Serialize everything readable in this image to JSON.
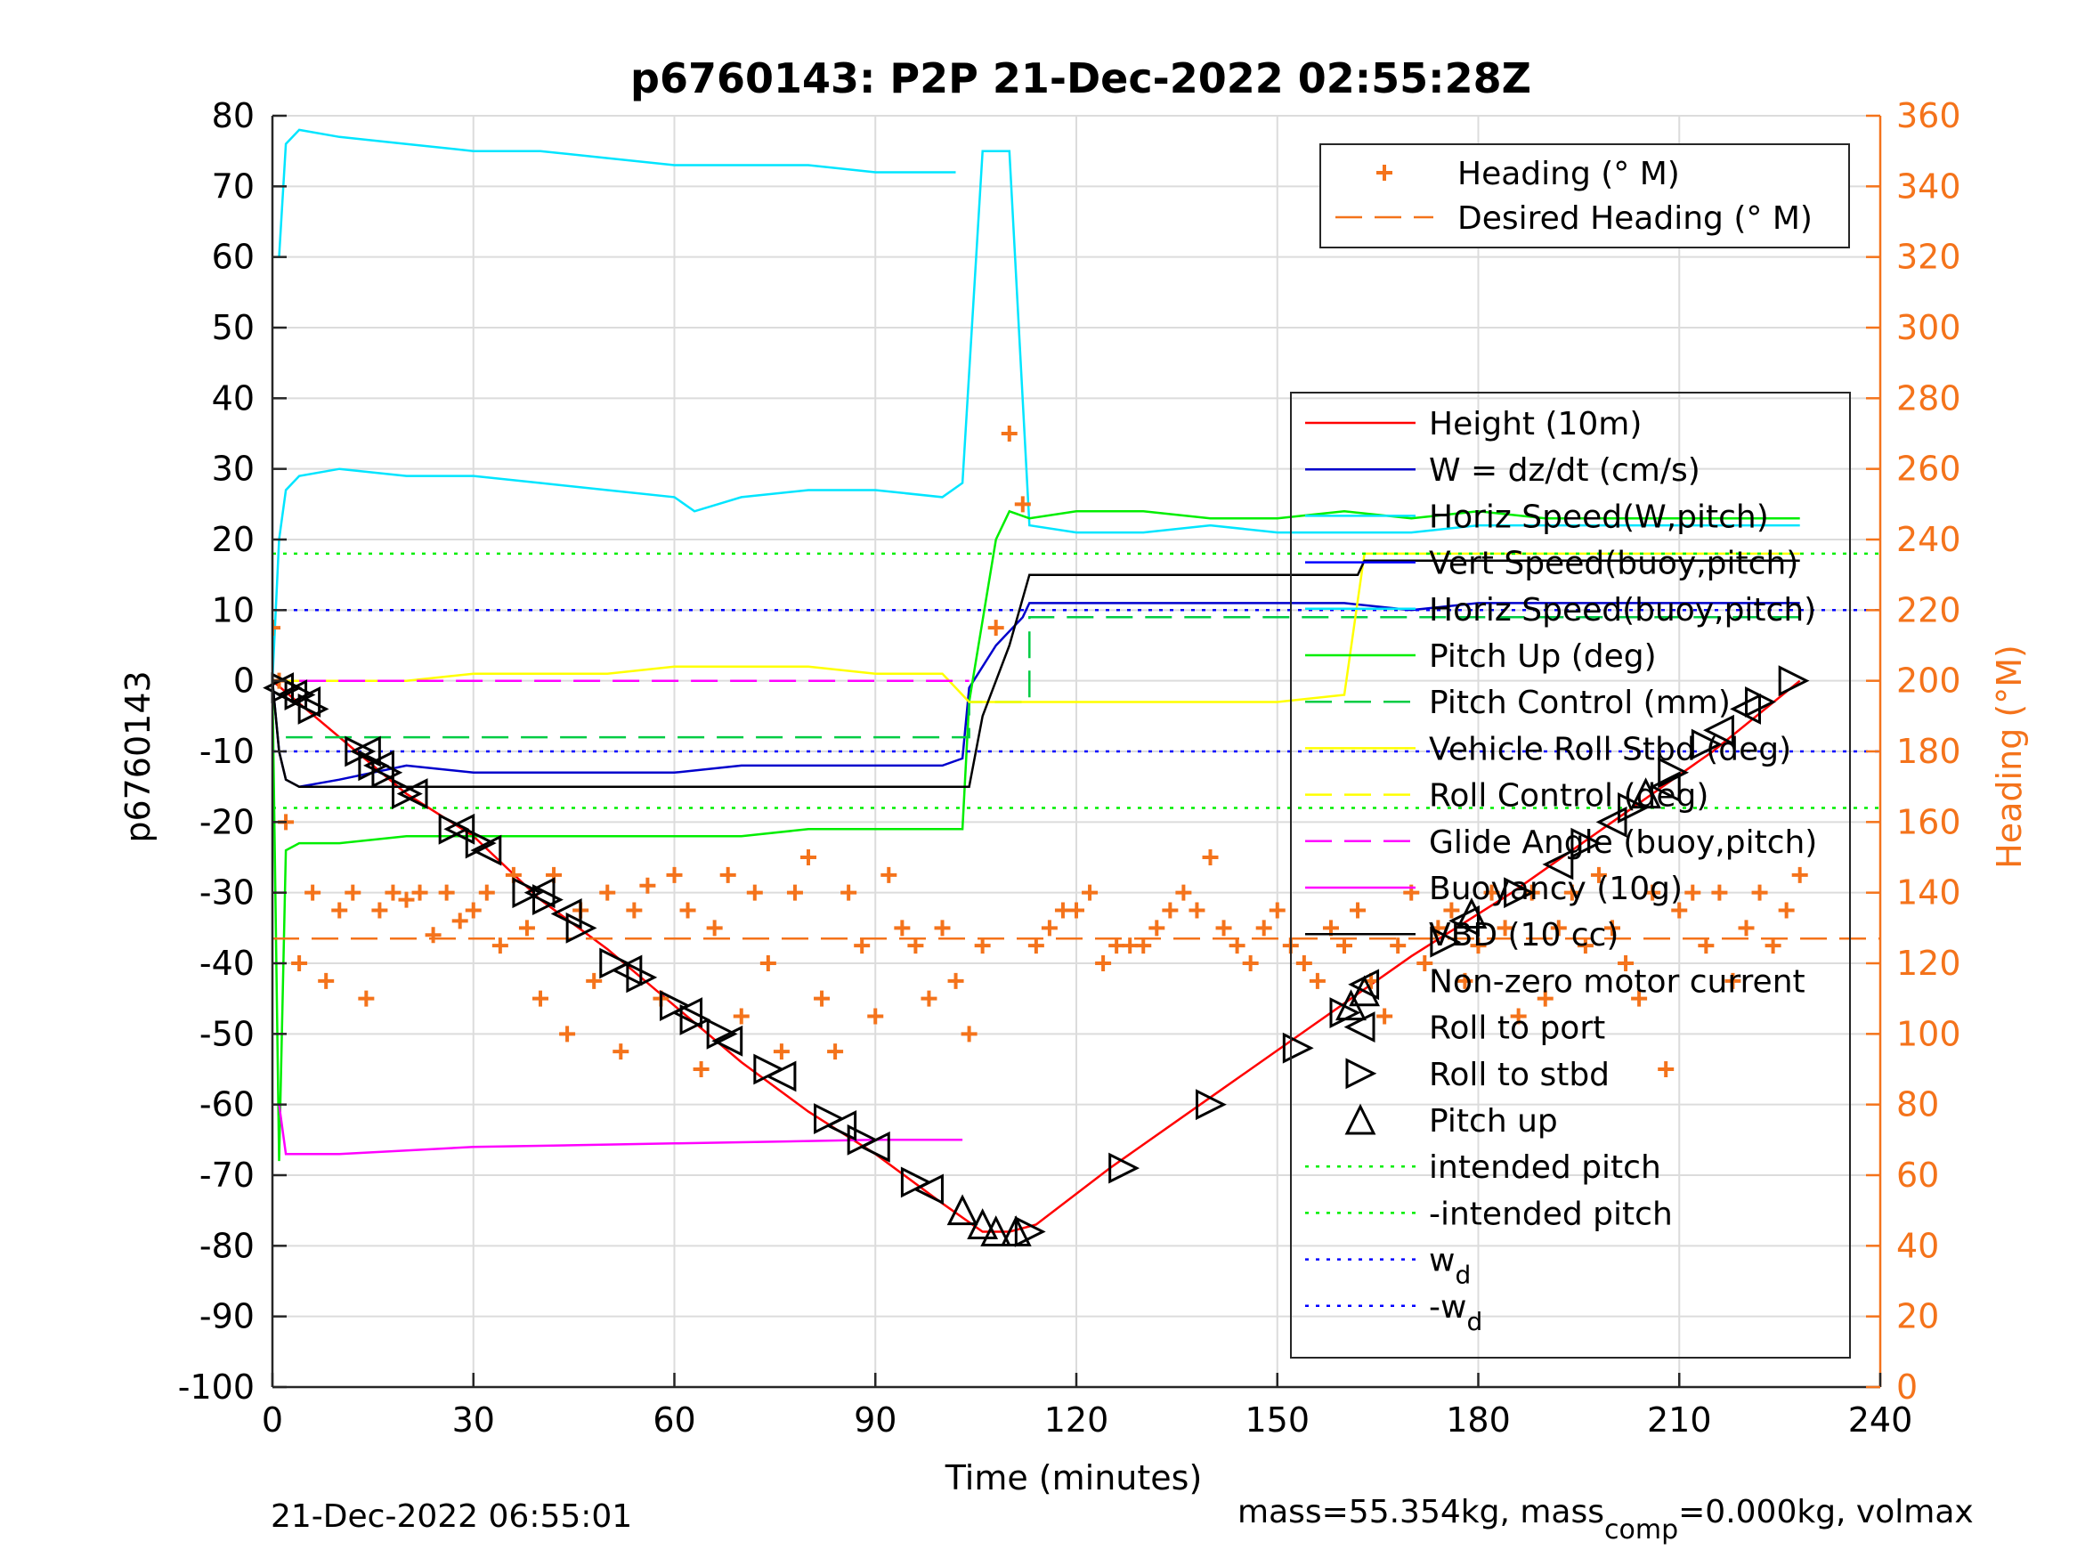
{
  "chart_data": {
    "type": "line",
    "title": "p6760143: P2P 21-Dec-2022 02:55:28Z",
    "xlabel": "Time (minutes)",
    "ylabel_left": "p6760143",
    "ylabel_right": "Heading (°M)",
    "xlim": [
      0,
      240
    ],
    "ylim_left": [
      -100,
      80
    ],
    "ylim_right": [
      0,
      360
    ],
    "x_ticks": [
      "0",
      "30",
      "60",
      "90",
      "120",
      "150",
      "180",
      "210",
      "240"
    ],
    "y_ticks_left": [
      "80",
      "70",
      "60",
      "50",
      "40",
      "30",
      "20",
      "10",
      "0",
      "-10",
      "-20",
      "-30",
      "-40",
      "-50",
      "-60",
      "-70",
      "-80",
      "-90",
      "-100"
    ],
    "y_ticks_right": [
      "360",
      "340",
      "320",
      "300",
      "280",
      "260",
      "240",
      "220",
      "200",
      "180",
      "160",
      "140",
      "120",
      "100",
      "80",
      "60",
      "40",
      "20",
      "0"
    ],
    "grid": true,
    "footer_left": "21-Dec-2022 06:55:01",
    "footer_right": "mass=55.354kg, mass",
    "footer_right_sub": "comp",
    "footer_right_tail": "=0.000kg, volmax",
    "heading_legend": [
      {
        "label": "Heading (° M)",
        "color": "#f4731b",
        "style": "plus"
      },
      {
        "label": "Desired Heading (° M)",
        "color": "#f4731b",
        "style": "dashed"
      }
    ],
    "legend": [
      {
        "label": "Height (10m)",
        "color": "#ff0000",
        "style": "solid"
      },
      {
        "label": "W = dz/dt (cm/s)",
        "color": "#0000cc",
        "style": "solid"
      },
      {
        "label": "Horiz Speed(W,pitch)",
        "color": "#00e5ff",
        "style": "solid"
      },
      {
        "label": "Vert Speed(buoy,pitch)",
        "color": "#0000ff",
        "style": "solid"
      },
      {
        "label": "Horiz Speed(buoy,pitch)",
        "color": "#00e5ff",
        "style": "solid"
      },
      {
        "label": "Pitch Up (deg)",
        "color": "#00ee00",
        "style": "solid"
      },
      {
        "label": "Pitch Control (mm)",
        "color": "#00cc44",
        "style": "dashed"
      },
      {
        "label": "Vehicle Roll Stbd (deg)",
        "color": "#ffff00",
        "style": "solid"
      },
      {
        "label": "Roll Control (deg)",
        "color": "#ffff00",
        "style": "dashed"
      },
      {
        "label": "Glide Angle (buoy,pitch)",
        "color": "#ff00ff",
        "style": "dashed"
      },
      {
        "label": "Buoyancy (10g)",
        "color": "#ff00ff",
        "style": "solid"
      },
      {
        "label": "VBD (10 cc)",
        "color": "#000000",
        "style": "solid"
      },
      {
        "label": "Non-zero motor current",
        "color": "#000000",
        "style": "none"
      },
      {
        "label": "Roll to port",
        "color": "#000000",
        "style": "tri-left"
      },
      {
        "label": "Roll to stbd",
        "color": "#000000",
        "style": "tri-right"
      },
      {
        "label": "Pitch up",
        "color": "#000000",
        "style": "tri-up"
      },
      {
        "label": "intended pitch",
        "color": "#00ee00",
        "style": "dotted"
      },
      {
        "label": "-intended pitch",
        "color": "#00ee00",
        "style": "dotted"
      },
      {
        "label": "w",
        "sub": "d",
        "color": "#0000ff",
        "style": "dotted"
      },
      {
        "label": "-w",
        "sub": "d",
        "color": "#0000ff",
        "style": "dotted"
      }
    ],
    "series": [
      {
        "name": "Height (10m)",
        "color": "#ff0000",
        "x": [
          0,
          10,
          20,
          30,
          40,
          50,
          60,
          70,
          80,
          90,
          100,
          106,
          110,
          114,
          125,
          140,
          155,
          170,
          185,
          200,
          215,
          228
        ],
        "y": [
          0,
          -8,
          -16,
          -22,
          -31,
          -38,
          -46,
          -54,
          -61,
          -67,
          -74,
          -78,
          -78,
          -77,
          -69,
          -59,
          -49,
          -39,
          -30,
          -20,
          -10,
          0
        ]
      },
      {
        "name": "W = dz/dt (cm/s)",
        "color": "#0000cc",
        "x": [
          0,
          1,
          2,
          4,
          10,
          20,
          30,
          40,
          50,
          60,
          70,
          80,
          90,
          100,
          103,
          104,
          108,
          112,
          113,
          120,
          130,
          140,
          150,
          160,
          170,
          180,
          190,
          200,
          210,
          220,
          228
        ],
        "y": [
          0,
          -10,
          -14,
          -15,
          -14,
          -12,
          -13,
          -13,
          -13,
          -13,
          -12,
          -12,
          -12,
          -12,
          -11,
          -1,
          5,
          9,
          11,
          11,
          11,
          11,
          11,
          11,
          10,
          11,
          11,
          11,
          11,
          11,
          11
        ]
      },
      {
        "name": "Horiz Speed(W,pitch)",
        "color": "#00e5ff",
        "x": [
          0,
          1,
          2,
          4,
          10,
          20,
          30,
          40,
          50,
          60,
          63,
          70,
          80,
          90,
          100,
          103,
          106,
          110,
          113,
          120,
          130,
          140,
          150,
          160,
          170,
          180,
          190,
          200,
          210,
          220,
          228
        ],
        "y": [
          0,
          20,
          27,
          29,
          30,
          29,
          29,
          28,
          27,
          26,
          24,
          26,
          27,
          27,
          26,
          28,
          75,
          75,
          22,
          21,
          21,
          22,
          21,
          21,
          21,
          22,
          22,
          22,
          22,
          22,
          22
        ]
      },
      {
        "name": "Horiz Speed(buoy,pitch)",
        "color": "#00e5ff",
        "x": [
          1,
          2,
          4,
          10,
          20,
          30,
          40,
          50,
          60,
          70,
          80,
          90,
          100,
          102
        ],
        "y": [
          60,
          76,
          78,
          77,
          76,
          75,
          75,
          74,
          73,
          73,
          73,
          72,
          72,
          72
        ]
      },
      {
        "name": "Pitch Up (deg)",
        "color": "#00ee00",
        "x": [
          0,
          1,
          2,
          4,
          10,
          20,
          30,
          40,
          50,
          60,
          70,
          80,
          90,
          100,
          103,
          104,
          108,
          110,
          113,
          120,
          130,
          140,
          150,
          160,
          170,
          180,
          190,
          200,
          210,
          220,
          228
        ],
        "y": [
          0,
          -68,
          -24,
          -23,
          -23,
          -22,
          -22,
          -22,
          -22,
          -22,
          -22,
          -21,
          -21,
          -21,
          -21,
          -3,
          20,
          24,
          23,
          24,
          24,
          23,
          23,
          24,
          23,
          24,
          23,
          23,
          23,
          23,
          23
        ]
      },
      {
        "name": "Pitch Control (mm)",
        "color": "#00cc44",
        "dashed": true,
        "x": [
          2,
          104,
          104,
          113,
          113,
          228
        ],
        "y": [
          -8,
          -8,
          -3,
          -3,
          9,
          9
        ]
      },
      {
        "name": "Vehicle Roll Stbd (deg)",
        "color": "#ffff00",
        "x": [
          0,
          10,
          20,
          30,
          40,
          50,
          60,
          70,
          80,
          90,
          100,
          104,
          110,
          113,
          120,
          130,
          140,
          150,
          160,
          163,
          170,
          180,
          190,
          200,
          210,
          220,
          228
        ],
        "y": [
          0,
          0,
          0,
          1,
          1,
          1,
          2,
          2,
          2,
          1,
          1,
          -3,
          -3,
          -3,
          -3,
          -3,
          -3,
          -3,
          -2,
          18,
          18,
          18,
          18,
          18,
          18,
          18,
          18
        ]
      },
      {
        "name": "Glide Angle (buoy,pitch)",
        "color": "#ff00ff",
        "dashed": true,
        "x": [
          4,
          104
        ],
        "y": [
          0,
          0
        ]
      },
      {
        "name": "Buoyancy (10g)",
        "color": "#ff00ff",
        "x": [
          1,
          2,
          10,
          30,
          60,
          90,
          103
        ],
        "y": [
          -60,
          -67,
          -67,
          -66,
          -65.5,
          -65,
          -65
        ]
      },
      {
        "name": "VBD (10 cc)",
        "color": "#000000",
        "x": [
          0,
          1,
          2,
          4,
          104,
          106,
          110,
          113,
          114,
          162,
          163,
          228
        ],
        "y": [
          0,
          -10,
          -14,
          -15,
          -15,
          -5,
          5,
          15,
          15,
          15,
          17,
          17
        ]
      },
      {
        "name": "intended pitch",
        "color": "#00ee00",
        "dotted": true,
        "x": [
          0,
          240
        ],
        "y": [
          18,
          18
        ]
      },
      {
        "name": "-intended pitch",
        "color": "#00ee00",
        "dotted": true,
        "x": [
          0,
          240
        ],
        "y": [
          -18,
          -18
        ]
      },
      {
        "name": "w_d",
        "color": "#0000ff",
        "dotted": true,
        "x": [
          0,
          240
        ],
        "y": [
          10,
          10
        ]
      },
      {
        "name": "-w_d",
        "color": "#0000ff",
        "dotted": true,
        "x": [
          0,
          240
        ],
        "y": [
          -10,
          -10
        ]
      },
      {
        "name": "Desired Heading (° M)",
        "color": "#f4731b",
        "dashed": true,
        "axis": "right",
        "x": [
          0,
          240
        ],
        "y": [
          127,
          127
        ]
      },
      {
        "name": "Heading (° M)",
        "color": "#f4731b",
        "marker": "plus",
        "axis": "right",
        "x": [
          0,
          1,
          2,
          4,
          6,
          8,
          10,
          12,
          14,
          16,
          18,
          20,
          22,
          24,
          26,
          28,
          30,
          32,
          34,
          36,
          38,
          40,
          42,
          44,
          46,
          48,
          50,
          52,
          54,
          56,
          58,
          60,
          62,
          64,
          66,
          68,
          70,
          72,
          74,
          76,
          78,
          80,
          82,
          84,
          86,
          88,
          90,
          92,
          94,
          96,
          98,
          100,
          102,
          104,
          106,
          108,
          110,
          112,
          114,
          116,
          118,
          120,
          122,
          124,
          126,
          128,
          130,
          132,
          134,
          136,
          138,
          140,
          142,
          144,
          146,
          148,
          150,
          152,
          154,
          156,
          158,
          160,
          162,
          164,
          166,
          168,
          170,
          172,
          174,
          176,
          178,
          180,
          182,
          184,
          186,
          188,
          190,
          192,
          194,
          196,
          198,
          200,
          202,
          204,
          206,
          208,
          210,
          212,
          214,
          216,
          218,
          220,
          222,
          224,
          226,
          228
        ],
        "y": [
          215,
          200,
          160,
          120,
          140,
          115,
          135,
          140,
          110,
          135,
          140,
          138,
          140,
          128,
          140,
          132,
          135,
          140,
          125,
          145,
          130,
          110,
          145,
          100,
          135,
          115,
          140,
          95,
          135,
          142,
          110,
          145,
          135,
          90,
          130,
          145,
          105,
          140,
          120,
          95,
          140,
          150,
          110,
          95,
          140,
          125,
          105,
          145,
          130,
          125,
          110,
          130,
          115,
          100,
          125,
          215,
          270,
          250,
          125,
          130,
          135,
          135,
          140,
          120,
          125,
          125,
          125,
          130,
          135,
          140,
          135,
          150,
          130,
          125,
          120,
          130,
          135,
          125,
          120,
          115,
          130,
          125,
          135,
          115,
          105,
          125,
          140,
          120,
          130,
          135,
          115,
          125,
          140,
          130,
          105,
          140,
          110,
          130,
          140,
          125,
          145,
          130,
          120,
          110,
          140,
          90,
          135,
          140,
          125,
          140,
          115,
          130,
          140,
          125,
          135,
          145
        ]
      }
    ],
    "markers": {
      "roll_to_port": {
        "x": [
          1,
          3,
          5,
          14,
          16,
          21,
          28,
          32,
          40,
          44,
          53,
          62,
          68,
          76,
          85,
          90,
          98,
          163,
          178,
          192,
          200,
          208,
          216,
          220
        ],
        "y": [
          -1,
          -2,
          -3,
          -10,
          -12,
          -16,
          -21,
          -24,
          -30,
          -33,
          -41,
          -47,
          -51,
          -56,
          -63,
          -66,
          -72,
          -43,
          -34,
          -26,
          -20,
          -15,
          -7,
          -4
        ]
      },
      "roll_to_stbd": {
        "x": [
          2,
          4,
          6,
          13,
          15,
          17,
          20,
          27,
          31,
          38,
          41,
          46,
          51,
          55,
          60,
          63,
          67,
          74,
          83,
          88,
          96,
          113,
          127,
          140,
          153,
          160,
          175,
          186,
          196,
          203,
          209,
          214,
          222,
          227
        ],
        "y": [
          -1,
          -2,
          -4,
          -10,
          -12,
          -13,
          -16,
          -21,
          -23,
          -30,
          -31,
          -35,
          -40,
          -42,
          -46,
          -48,
          -50,
          -55,
          -62,
          -65,
          -71,
          -78,
          -69,
          -60,
          -52,
          -47,
          -37,
          -30,
          -23,
          -18,
          -13,
          -9,
          -3,
          0
        ]
      },
      "pitch_up": {
        "x": [
          103,
          106,
          108,
          111,
          161,
          163,
          179,
          205
        ],
        "y": [
          -75,
          -77,
          -78,
          -78,
          -46,
          -44,
          -33,
          -16
        ]
      }
    }
  }
}
